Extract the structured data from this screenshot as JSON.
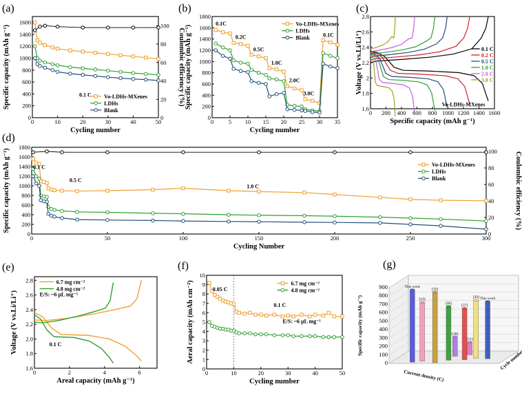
{
  "colors": {
    "orange": "#f0a030",
    "green": "#2e9e2e",
    "blue": "#1f4e79",
    "red": "#d42020",
    "violet": "#c060e0",
    "olive": "#a0a020",
    "black": "#000000"
  },
  "chart_data": [
    {
      "panel": "(a)",
      "type": "scatter",
      "xlabel": "Cycling number",
      "ylabel": "Specific capacity (mAh g⁻¹)",
      "y2label": "Coulombic efficiency (%)",
      "xlim": [
        0,
        50
      ],
      "ylim": [
        0,
        1700
      ],
      "y2lim": [
        0,
        110
      ],
      "xticks": [
        0,
        10,
        20,
        30,
        40,
        50
      ],
      "yticks": [
        0,
        200,
        400,
        600,
        800,
        1000,
        1200,
        1400,
        1600
      ],
      "y2ticks": [
        0,
        20,
        40,
        60,
        80,
        100
      ],
      "annotations": [
        "0.1 C"
      ],
      "legend_position": "bottom-right",
      "series": [
        {
          "name": "Vo-LDHs-MXenes",
          "color": "orange",
          "x": [
            1,
            2,
            3,
            5,
            8,
            10,
            15,
            20,
            25,
            30,
            35,
            40,
            45,
            50
          ],
          "y": [
            1600,
            1300,
            1260,
            1220,
            1180,
            1160,
            1130,
            1110,
            1090,
            1070,
            1050,
            1030,
            1010,
            985
          ]
        },
        {
          "name": "LDHs",
          "color": "green",
          "x": [
            1,
            2,
            3,
            5,
            8,
            10,
            15,
            20,
            25,
            30,
            35,
            40,
            45,
            50
          ],
          "y": [
            1200,
            1000,
            960,
            930,
            900,
            880,
            850,
            830,
            810,
            790,
            770,
            750,
            735,
            720
          ]
        },
        {
          "name": "Blank",
          "color": "blue",
          "x": [
            1,
            2,
            3,
            5,
            8,
            10,
            15,
            20,
            25,
            30,
            35,
            40,
            45,
            50
          ],
          "y": [
            1000,
            900,
            870,
            840,
            800,
            770,
            740,
            720,
            700,
            680,
            665,
            650,
            640,
            625
          ]
        },
        {
          "name": "CE",
          "axis": "y2",
          "color": "black",
          "x": [
            1,
            3,
            5,
            10,
            20,
            30,
            40,
            50
          ],
          "y": [
            95,
            99,
            100,
            99,
            98,
            98,
            98,
            98
          ]
        }
      ]
    },
    {
      "panel": "(b)",
      "type": "line",
      "xlabel": "Cycling number",
      "ylabel": "Specific capacity (mAh g⁻¹)",
      "xlim": [
        0,
        35
      ],
      "ylim": [
        0,
        1800
      ],
      "xticks": [
        0,
        5,
        10,
        15,
        20,
        25,
        30,
        35
      ],
      "yticks": [
        0,
        200,
        400,
        600,
        800,
        1000,
        1200,
        1400,
        1600,
        1800
      ],
      "annotations": [
        "0.1C",
        "0.2C",
        "0.5C",
        "1.0C",
        "2.0C",
        "3.0C",
        "0.1C"
      ],
      "legend_position": "top-right",
      "series": [
        {
          "name": "Vo-LDHs-MXenes",
          "color": "orange",
          "x": [
            1,
            3,
            5,
            6,
            8,
            10,
            11,
            13,
            15,
            16,
            18,
            20,
            21,
            23,
            25,
            26,
            28,
            30,
            31,
            33,
            35
          ],
          "y": [
            1560,
            1520,
            1500,
            1330,
            1310,
            1280,
            1120,
            1090,
            1060,
            880,
            860,
            820,
            560,
            520,
            490,
            330,
            300,
            260,
            1380,
            1340,
            1300
          ]
        },
        {
          "name": "LDHs",
          "color": "green",
          "x": [
            1,
            3,
            5,
            6,
            8,
            10,
            11,
            13,
            15,
            16,
            18,
            20,
            21,
            23,
            25,
            26,
            28,
            30,
            31,
            33,
            35
          ],
          "y": [
            1320,
            1250,
            1200,
            1020,
            980,
            960,
            850,
            800,
            760,
            700,
            680,
            650,
            230,
            210,
            200,
            150,
            130,
            120,
            1150,
            1100,
            1060
          ]
        },
        {
          "name": "Blank",
          "color": "blue",
          "x": [
            1,
            3,
            5,
            6,
            8,
            10,
            11,
            13,
            15,
            16,
            18,
            20,
            21,
            23,
            25,
            26,
            28,
            30,
            31,
            33,
            35
          ],
          "y": [
            1200,
            1100,
            1050,
            870,
            830,
            810,
            650,
            620,
            600,
            380,
            420,
            440,
            150,
            140,
            130,
            120,
            100,
            90,
            960,
            910,
            880
          ]
        }
      ]
    },
    {
      "panel": "(c)",
      "type": "line",
      "xlabel": "Specific capacity (mAh g⁻¹)",
      "ylabel": "Voltage (V vs.Li/Li⁺)",
      "xlim": [
        0,
        1600
      ],
      "ylim": [
        1.6,
        2.8
      ],
      "xticks": [
        0,
        200,
        400,
        600,
        800,
        1000,
        1200,
        1400,
        1600
      ],
      "yticks": [
        1.6,
        1.8,
        2.0,
        2.2,
        2.4,
        2.6,
        2.8
      ],
      "annotations": [
        "Vo-LDHs-MXenes"
      ],
      "legend_position": "right",
      "series": [
        {
          "name": "0.1 C",
          "color": "black",
          "cap": 1520
        },
        {
          "name": "0.2 C",
          "color": "red",
          "cap": 1280
        },
        {
          "name": "0.5 C",
          "color": "blue",
          "cap": 990
        },
        {
          "name": "1.0 C",
          "color": "green",
          "cap": 830
        },
        {
          "name": "2.0 C",
          "color": "violet",
          "cap": 570
        },
        {
          "name": "3.0 C",
          "color": "olive",
          "cap": 320
        }
      ]
    },
    {
      "panel": "(d)",
      "type": "scatter",
      "xlabel": "Cycling Number",
      "ylabel": "Specific capacity (mAh g⁻¹)",
      "y2label": "Coulombic efficiency (%)",
      "xlim": [
        0,
        300
      ],
      "ylim": [
        0,
        1800
      ],
      "y2lim": [
        0,
        105
      ],
      "xticks": [
        0,
        50,
        100,
        150,
        200,
        250,
        300
      ],
      "yticks": [
        0,
        200,
        400,
        600,
        800,
        1000,
        1200,
        1400,
        1600,
        1800
      ],
      "y2ticks": [
        0,
        20,
        40,
        60,
        80,
        100
      ],
      "annotations": [
        "0.1 C",
        "0.5 C",
        "1.0 C"
      ],
      "legend_position": "right",
      "series": [
        {
          "name": "Vo-LDHs-MXenes",
          "color": "orange",
          "x": [
            1,
            3,
            5,
            6,
            8,
            10,
            11,
            13,
            15,
            20,
            30,
            50,
            80,
            100,
            130,
            150,
            180,
            200,
            230,
            250,
            270,
            300
          ],
          "y": [
            1560,
            1480,
            1450,
            1100,
            1080,
            1060,
            950,
            920,
            910,
            900,
            890,
            900,
            920,
            950,
            900,
            880,
            860,
            820,
            760,
            720,
            700,
            690
          ]
        },
        {
          "name": "LDHs",
          "color": "green",
          "x": [
            1,
            3,
            5,
            6,
            8,
            10,
            11,
            13,
            15,
            20,
            30,
            50,
            80,
            100,
            130,
            150,
            180,
            200,
            230,
            250,
            270,
            300
          ],
          "y": [
            1350,
            1200,
            1150,
            800,
            780,
            770,
            560,
            520,
            500,
            480,
            460,
            450,
            430,
            420,
            400,
            390,
            380,
            370,
            350,
            330,
            310,
            270
          ]
        },
        {
          "name": "Blank",
          "color": "blue",
          "x": [
            1,
            3,
            5,
            6,
            8,
            10,
            11,
            13,
            15,
            20,
            30,
            50,
            80,
            100,
            130,
            150,
            180,
            200,
            230,
            250,
            270,
            300
          ],
          "y": [
            1200,
            1050,
            1000,
            700,
            680,
            670,
            420,
            380,
            360,
            330,
            300,
            290,
            280,
            270,
            260,
            255,
            245,
            240,
            230,
            200,
            170,
            100
          ]
        },
        {
          "name": "CE",
          "axis": "y2",
          "color": "black",
          "x": [
            1,
            10,
            20,
            50,
            100,
            150,
            200,
            250,
            300
          ],
          "y": [
            99,
            100,
            99,
            99,
            99,
            99,
            99,
            99,
            99
          ]
        }
      ]
    },
    {
      "panel": "(e)",
      "type": "line",
      "xlabel": "Areal capacity (mAh g⁻¹)",
      "ylabel": "Voltage (V vs.Li/Li⁺)",
      "xlim": [
        0,
        7
      ],
      "ylim": [
        1.6,
        2.85
      ],
      "xticks": [
        0,
        2,
        4,
        6
      ],
      "yticks": [
        1.6,
        1.8,
        2.0,
        2.2,
        2.4,
        2.6,
        2.8
      ],
      "annotations": [
        "E/S: ~6 μL mg⁻¹",
        "0.1 C"
      ],
      "legend_position": "top-left",
      "series": [
        {
          "name": "6.7 mg cm⁻²",
          "color": "orange",
          "cap": 6.1
        },
        {
          "name": "4.8 mg cm⁻²",
          "color": "green",
          "cap": 4.5
        }
      ]
    },
    {
      "panel": "(f)",
      "type": "scatter",
      "xlabel": "Cycling number",
      "ylabel": "Aeral capacity (mAh cm⁻²)",
      "xlim": [
        0,
        50
      ],
      "ylim": [
        0,
        10
      ],
      "xticks": [
        0,
        10,
        20,
        30,
        40,
        50
      ],
      "yticks": [
        0,
        1,
        2,
        3,
        4,
        5,
        6,
        7,
        8,
        9,
        10
      ],
      "annotations": [
        "0.05 C",
        "0.1 C",
        "E/S: ~6 μL mg⁻¹"
      ],
      "legend_position": "top-right",
      "series": [
        {
          "name": "6.7 mg cm⁻²",
          "color": "orange",
          "x": [
            1,
            2,
            3,
            4,
            5,
            6,
            7,
            8,
            9,
            10,
            11,
            12,
            14,
            16,
            18,
            20,
            22,
            25,
            28,
            30,
            32,
            35,
            38,
            40,
            43,
            45,
            47,
            50
          ],
          "y": [
            9.2,
            8.3,
            7.9,
            7.7,
            7.5,
            7.3,
            7.2,
            7.1,
            7.0,
            6.9,
            6.1,
            6.0,
            5.9,
            6.0,
            5.8,
            5.8,
            5.7,
            5.8,
            5.6,
            5.7,
            5.6,
            5.8,
            5.6,
            5.8,
            5.7,
            6.0,
            5.6,
            5.6
          ]
        },
        {
          "name": "4.8 mg cm⁻²",
          "color": "green",
          "x": [
            1,
            2,
            3,
            4,
            5,
            6,
            7,
            8,
            9,
            10,
            11,
            12,
            14,
            16,
            18,
            20,
            22,
            25,
            28,
            30,
            32,
            35,
            38,
            40,
            43,
            45,
            47,
            50
          ],
          "y": [
            5.0,
            4.6,
            4.5,
            4.4,
            4.3,
            4.3,
            4.2,
            4.2,
            4.1,
            4.1,
            3.9,
            3.8,
            3.8,
            3.8,
            3.7,
            3.7,
            3.7,
            3.6,
            3.6,
            3.6,
            3.5,
            3.5,
            3.5,
            3.5,
            3.4,
            3.4,
            3.4,
            3.4
          ]
        }
      ]
    },
    {
      "panel": "(g)",
      "type": "bar",
      "xlabel": "Current density (C)",
      "ylabel": "Specific capacity (mAh g⁻¹)",
      "zlabel": "Cycle number",
      "yticks": [
        0,
        100,
        200,
        300,
        400,
        500,
        600,
        700,
        800,
        900
      ],
      "bars": [
        {
          "label": "This work",
          "value": 860,
          "color": "#5a5ae0"
        },
        {
          "label": "[19]",
          "value": 700,
          "color": "#f2a0c0"
        },
        {
          "label": "[35]",
          "value": 840,
          "color": "#c8a040"
        },
        {
          "label": "[36]",
          "value": 640,
          "color": "#40a040"
        },
        {
          "label": "[37]",
          "value": 610,
          "color": "#e05050"
        },
        {
          "label": "[38]",
          "value": 230,
          "color": "#b080e0"
        },
        {
          "label": "[39]",
          "value": 690,
          "color": "#f0e080"
        },
        {
          "label": "This work",
          "value": 680,
          "color": "#4060c0"
        },
        {
          "label": "[11]",
          "value": 150,
          "color": "#e080c0"
        }
      ]
    }
  ]
}
